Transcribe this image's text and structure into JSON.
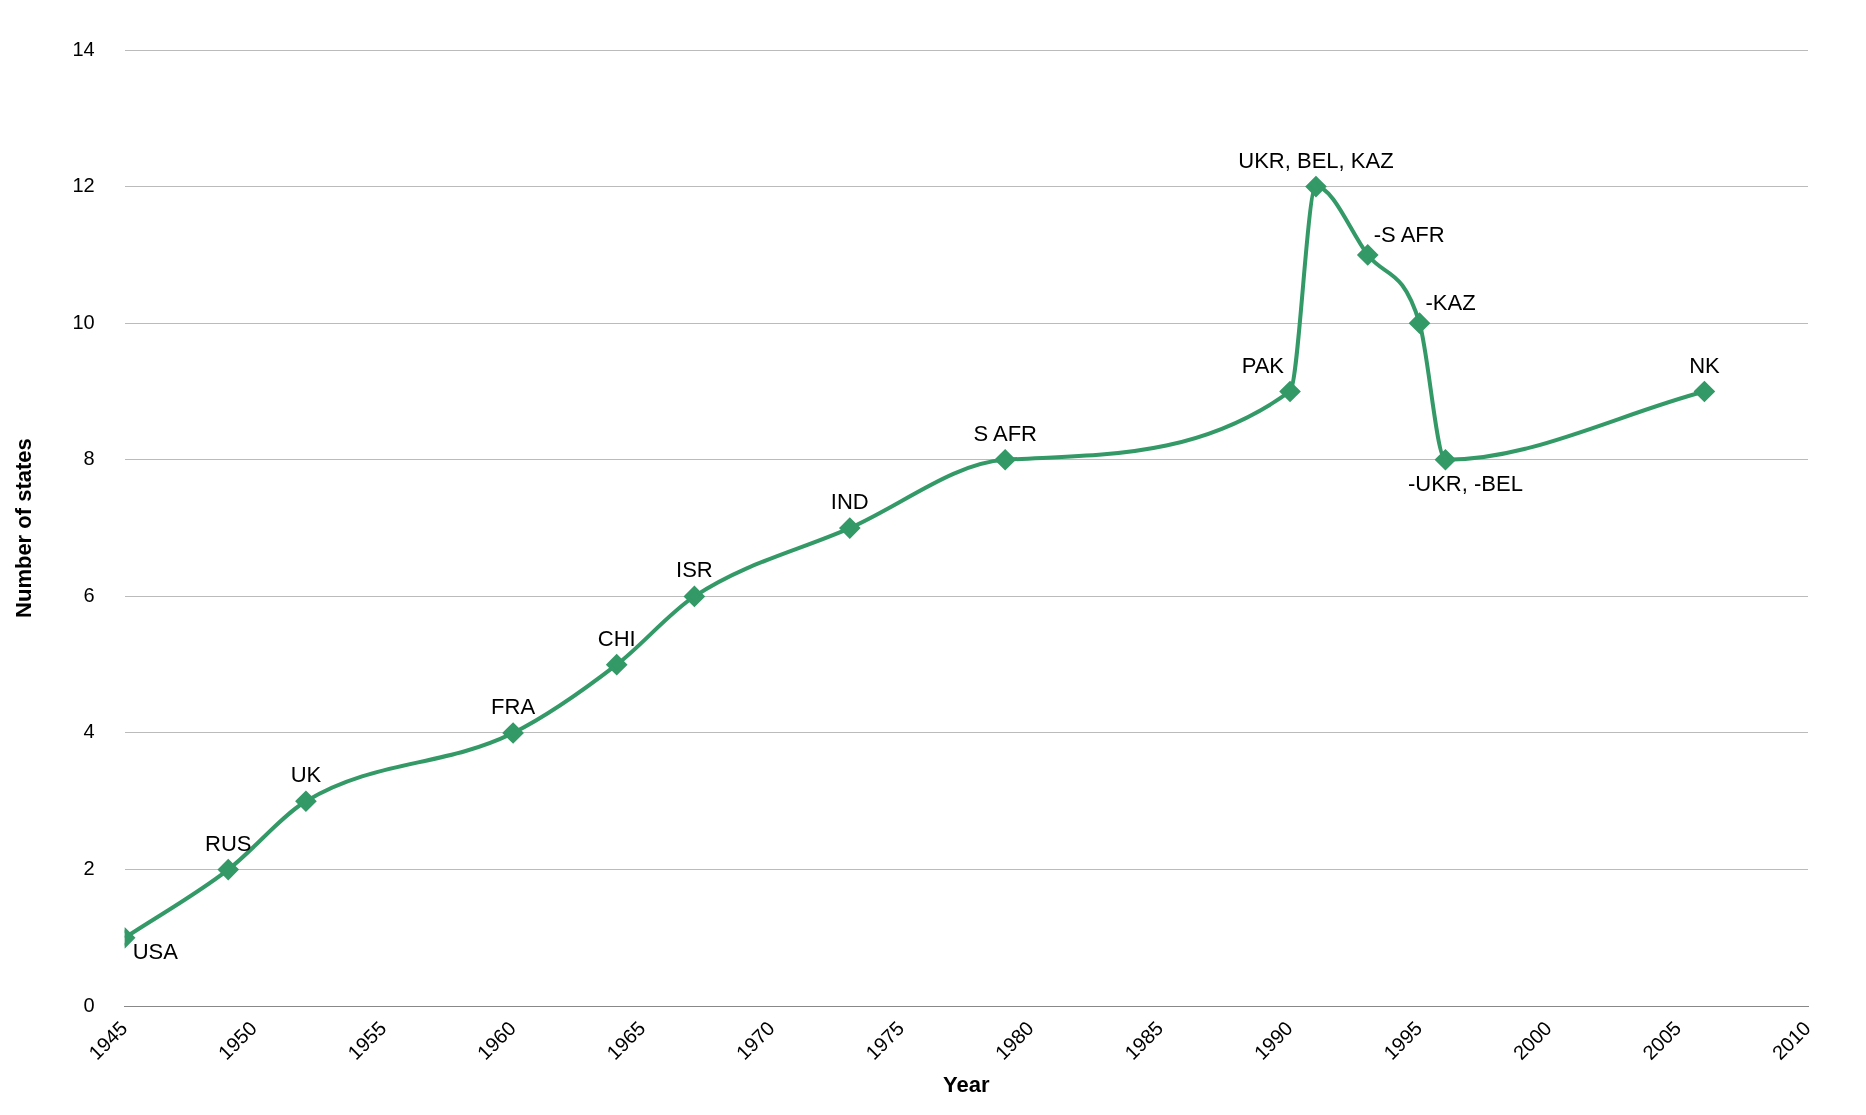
{
  "chart_data": {
    "type": "line",
    "xlabel": "Year",
    "ylabel": "Number of states",
    "x": [
      1945,
      1949,
      1952,
      1960,
      1964,
      1967,
      1973,
      1979,
      1990,
      1991,
      1993,
      1995,
      1996,
      2006
    ],
    "values": [
      1,
      2,
      3,
      4,
      5,
      6,
      7,
      8,
      9,
      12,
      11,
      10,
      8,
      9
    ],
    "color": "#339966",
    "marker": "diamond",
    "line_style": "solid",
    "grid": "y",
    "legend": false,
    "xlim": [
      1945,
      2010
    ],
    "xticks": [
      1945,
      1950,
      1955,
      1960,
      1965,
      1970,
      1975,
      1980,
      1985,
      1990,
      1995,
      2000,
      2005,
      2010
    ],
    "ylim": [
      0,
      14
    ],
    "yticks": [
      0,
      2,
      4,
      6,
      8,
      10,
      12,
      14
    ],
    "annotations": [
      {
        "text": "USA",
        "x": 1945,
        "y": 1
      },
      {
        "text": "RUS",
        "x": 1949,
        "y": 2
      },
      {
        "text": "UK",
        "x": 1952,
        "y": 3
      },
      {
        "text": "FRA",
        "x": 1960,
        "y": 4
      },
      {
        "text": "CHI",
        "x": 1964,
        "y": 5
      },
      {
        "text": "ISR",
        "x": 1967,
        "y": 6
      },
      {
        "text": "IND",
        "x": 1973,
        "y": 7
      },
      {
        "text": "S AFR",
        "x": 1979,
        "y": 8
      },
      {
        "text": "PAK",
        "x": 1990,
        "y": 9
      },
      {
        "text": "UKR, BEL, KAZ",
        "x": 1991,
        "y": 12
      },
      {
        "text": "-S AFR",
        "x": 1993,
        "y": 11
      },
      {
        "text": "-KAZ",
        "x": 1995,
        "y": 10
      },
      {
        "text": "-UKR, -BEL",
        "x": 1996,
        "y": 8
      },
      {
        "text": "NK",
        "x": 2006,
        "y": 9
      }
    ]
  }
}
